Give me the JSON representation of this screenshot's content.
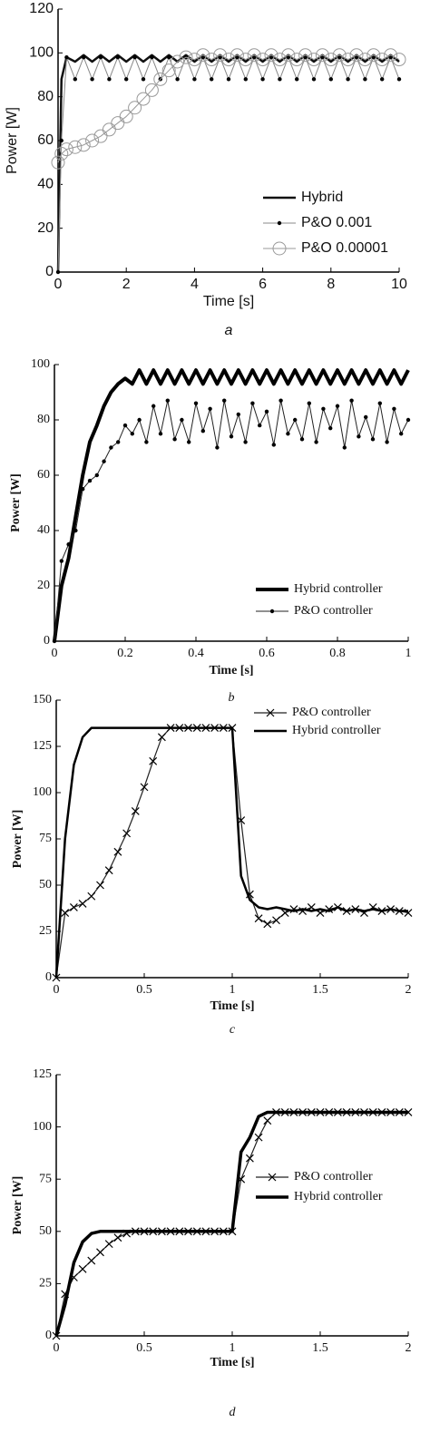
{
  "chart_data": [
    {
      "type": "line",
      "caption": "a",
      "xlabel": "Time [s]",
      "ylabel": "Power [W]",
      "x": [
        0,
        0.1,
        0.25,
        0.5,
        0.75,
        1,
        1.25,
        1.5,
        1.75,
        2,
        2.25,
        2.5,
        2.75,
        3,
        3.25,
        3.5,
        3.75,
        4,
        4.25,
        4.5,
        4.75,
        5,
        5.25,
        5.5,
        5.75,
        6,
        6.25,
        6.5,
        6.75,
        7,
        7.25,
        7.5,
        7.75,
        8,
        8.25,
        8.5,
        8.75,
        9,
        9.25,
        9.5,
        9.75,
        10
      ],
      "xlim": [
        0,
        10
      ],
      "xticks": [
        0,
        2,
        4,
        6,
        8,
        10
      ],
      "ylim": [
        0,
        120
      ],
      "yticks": [
        0,
        20,
        40,
        60,
        80,
        100,
        120
      ],
      "legend": "lower right",
      "series": [
        {
          "name": "Hybrid",
          "color": "#111111",
          "width": 2.5,
          "marker": "none",
          "values": [
            0,
            88,
            98,
            96,
            99,
            96,
            99,
            96,
            99,
            96,
            99,
            96,
            99,
            96,
            99,
            96,
            99,
            96,
            99,
            96,
            99,
            96,
            99,
            96,
            99,
            96,
            99,
            96,
            99,
            96,
            99,
            96,
            99,
            96,
            99,
            96,
            99,
            96,
            99,
            96,
            99,
            96
          ]
        },
        {
          "name": "P&O 0.001",
          "color": "#888888",
          "width": 1,
          "marker": "dot",
          "values": [
            0,
            60,
            98,
            88,
            98,
            88,
            98,
            88,
            98,
            88,
            98,
            88,
            98,
            88,
            98,
            88,
            98,
            88,
            98,
            88,
            98,
            88,
            98,
            88,
            98,
            88,
            98,
            88,
            98,
            88,
            98,
            88,
            98,
            88,
            98,
            88,
            98,
            88,
            98,
            88,
            98,
            88
          ]
        },
        {
          "name": "P&O 0.00001",
          "color": "#999999",
          "width": 1,
          "marker": "circle",
          "values": [
            50,
            54,
            56,
            57,
            58,
            60,
            62,
            65,
            68,
            71,
            75,
            79,
            83,
            88,
            92,
            96,
            98,
            97,
            99,
            97,
            99,
            97,
            99,
            97,
            99,
            97,
            99,
            97,
            99,
            97,
            99,
            97,
            99,
            97,
            99,
            97,
            99,
            97,
            99,
            97,
            99,
            97
          ]
        }
      ]
    },
    {
      "type": "line",
      "caption": "b",
      "xlabel": "Time [s]",
      "ylabel": "Power [W]",
      "x": [
        0,
        0.02,
        0.04,
        0.06,
        0.08,
        0.1,
        0.12,
        0.14,
        0.16,
        0.18,
        0.2,
        0.22,
        0.24,
        0.26,
        0.28,
        0.3,
        0.32,
        0.34,
        0.36,
        0.38,
        0.4,
        0.42,
        0.44,
        0.46,
        0.48,
        0.5,
        0.52,
        0.54,
        0.56,
        0.58,
        0.6,
        0.62,
        0.64,
        0.66,
        0.68,
        0.7,
        0.72,
        0.74,
        0.76,
        0.78,
        0.8,
        0.82,
        0.84,
        0.86,
        0.88,
        0.9,
        0.92,
        0.94,
        0.96,
        0.98,
        1
      ],
      "xlim": [
        0,
        1
      ],
      "xticks": [
        0,
        0.2,
        0.4,
        0.6,
        0.8,
        1
      ],
      "ylim": [
        0,
        100
      ],
      "yticks": [
        0,
        20,
        40,
        60,
        80,
        100
      ],
      "legend": "lower right",
      "series": [
        {
          "name": "Hybrid controller",
          "color": "#000000",
          "width": 4,
          "marker": "none",
          "values": [
            0,
            20,
            30,
            45,
            60,
            72,
            78,
            85,
            90,
            93,
            95,
            93,
            98,
            93,
            98,
            93,
            98,
            93,
            98,
            93,
            98,
            93,
            98,
            93,
            98,
            93,
            98,
            93,
            98,
            93,
            98,
            93,
            98,
            93,
            98,
            93,
            98,
            93,
            98,
            93,
            98,
            93,
            98,
            93,
            98,
            93,
            98,
            93,
            98,
            93,
            98
          ]
        },
        {
          "name": "P&O controller",
          "color": "#222222",
          "width": 1,
          "marker": "dot",
          "values": [
            0,
            29,
            35,
            40,
            55,
            58,
            60,
            65,
            70,
            72,
            78,
            75,
            80,
            72,
            85,
            75,
            87,
            73,
            80,
            72,
            86,
            76,
            84,
            70,
            87,
            74,
            82,
            72,
            86,
            78,
            83,
            71,
            87,
            75,
            80,
            73,
            86,
            72,
            84,
            77,
            85,
            70,
            87,
            74,
            81,
            73,
            86,
            72,
            84,
            75,
            80
          ]
        }
      ]
    },
    {
      "type": "line",
      "caption": "c",
      "xlabel": "Time [s]",
      "ylabel": "Power [W]",
      "x": [
        0,
        0.05,
        0.1,
        0.15,
        0.2,
        0.25,
        0.3,
        0.35,
        0.4,
        0.45,
        0.5,
        0.55,
        0.6,
        0.65,
        0.7,
        0.75,
        0.8,
        0.85,
        0.9,
        0.95,
        1,
        1.05,
        1.1,
        1.15,
        1.2,
        1.25,
        1.3,
        1.35,
        1.4,
        1.45,
        1.5,
        1.55,
        1.6,
        1.65,
        1.7,
        1.75,
        1.8,
        1.85,
        1.9,
        1.95,
        2
      ],
      "xlim": [
        0,
        2
      ],
      "xticks": [
        0,
        0.5,
        1,
        1.5,
        2
      ],
      "ylim": [
        0,
        150
      ],
      "yticks": [
        0,
        25,
        50,
        75,
        100,
        125,
        150
      ],
      "legend": "upper right",
      "series": [
        {
          "name": "P&O controller",
          "color": "#222222",
          "width": 1.2,
          "marker": "x",
          "values": [
            0,
            35,
            38,
            40,
            44,
            50,
            58,
            68,
            78,
            90,
            103,
            117,
            130,
            135,
            135,
            135,
            135,
            135,
            135,
            135,
            135,
            85,
            45,
            32,
            29,
            31,
            35,
            37,
            36,
            38,
            35,
            37,
            38,
            36,
            37,
            35,
            38,
            36,
            37,
            36,
            35
          ]
        },
        {
          "name": "Hybrid controller",
          "color": "#000000",
          "width": 2.5,
          "marker": "none",
          "values": [
            0,
            75,
            115,
            130,
            135,
            135,
            135,
            135,
            135,
            135,
            135,
            135,
            135,
            135,
            135,
            135,
            135,
            135,
            135,
            135,
            135,
            55,
            42,
            38,
            37,
            38,
            37,
            36,
            37,
            36,
            37,
            36,
            38,
            36,
            37,
            36,
            37,
            36,
            37,
            36,
            36
          ]
        }
      ]
    },
    {
      "type": "line",
      "caption": "d",
      "xlabel": "Time [s]",
      "ylabel": "Power [W]",
      "x": [
        0,
        0.05,
        0.1,
        0.15,
        0.2,
        0.25,
        0.3,
        0.35,
        0.4,
        0.45,
        0.5,
        0.55,
        0.6,
        0.65,
        0.7,
        0.75,
        0.8,
        0.85,
        0.9,
        0.95,
        1,
        1.05,
        1.1,
        1.15,
        1.2,
        1.25,
        1.3,
        1.35,
        1.4,
        1.45,
        1.5,
        1.55,
        1.6,
        1.65,
        1.7,
        1.75,
        1.8,
        1.85,
        1.9,
        1.95,
        2
      ],
      "xlim": [
        0,
        2
      ],
      "xticks": [
        0,
        0.5,
        1,
        1.5,
        2
      ],
      "ylim": [
        0,
        125
      ],
      "yticks": [
        0,
        25,
        50,
        75,
        100,
        125
      ],
      "legend": "center right",
      "series": [
        {
          "name": "P&O controller",
          "color": "#222222",
          "width": 1.2,
          "marker": "x",
          "values": [
            0,
            20,
            28,
            32,
            36,
            40,
            44,
            47,
            49,
            50,
            50,
            50,
            50,
            50,
            50,
            50,
            50,
            50,
            50,
            50,
            50,
            75,
            85,
            95,
            103,
            107,
            107,
            107,
            107,
            107,
            107,
            107,
            107,
            107,
            107,
            107,
            107,
            107,
            107,
            107,
            107
          ]
        },
        {
          "name": "Hybrid controller",
          "color": "#000000",
          "width": 3.5,
          "marker": "none",
          "values": [
            0,
            15,
            35,
            45,
            49,
            50,
            50,
            50,
            50,
            50,
            50,
            50,
            50,
            50,
            50,
            50,
            50,
            50,
            50,
            50,
            50,
            88,
            95,
            105,
            107,
            107,
            107,
            107,
            107,
            107,
            107,
            107,
            107,
            107,
            107,
            107,
            107,
            107,
            107,
            107,
            107
          ]
        }
      ]
    }
  ]
}
